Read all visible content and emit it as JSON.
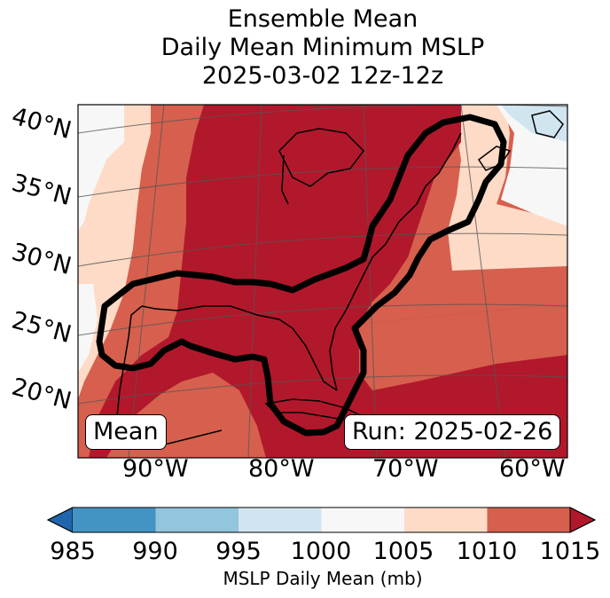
{
  "title": {
    "line1": "Ensemble Mean",
    "line2": "Daily Mean Minimum MSLP",
    "line3": "2025-03-02 12z-12z"
  },
  "map": {
    "lat_labels": [
      "40°N",
      "35°N",
      "30°N",
      "25°N",
      "20°N"
    ],
    "lon_labels": [
      "90°W",
      "80°W",
      "70°W",
      "60°W"
    ],
    "mean_label": "Mean",
    "run_label": "Run: 2025-02-26",
    "colors": {
      "lt1000": "#f6f6f6",
      "lt1005": "#f7f7f7",
      "lt1010": "#fddbc7",
      "lt1015": "#d6604d",
      "ge1015": "#b2182b",
      "low995": "#d1e5f0"
    }
  },
  "colorbar": {
    "ticks": [
      "985",
      "990",
      "995",
      "1000",
      "1005",
      "1010",
      "1015"
    ],
    "label": "MSLP Daily Mean (mb)",
    "colors": [
      "#2166ac",
      "#4393c3",
      "#92c5de",
      "#d1e5f0",
      "#f7f7f7",
      "#fddbc7",
      "#d6604d",
      "#b2182b"
    ]
  }
}
